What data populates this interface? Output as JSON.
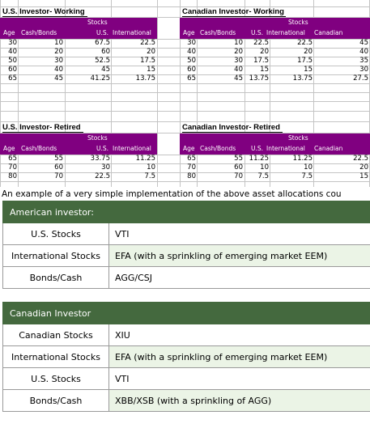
{
  "spreadsheet": {
    "working_us": {
      "title": "U.S. Investor- Working",
      "stocks_label": "Stocks",
      "headers": [
        "Age",
        "Cash/Bonds",
        "U.S.",
        "International"
      ],
      "rows": [
        [
          "30",
          "10",
          "67.5",
          "22.5"
        ],
        [
          "40",
          "20",
          "60",
          "20"
        ],
        [
          "50",
          "30",
          "52.5",
          "17.5"
        ],
        [
          "60",
          "40",
          "45",
          "15"
        ],
        [
          "65",
          "45",
          "41.25",
          "13.75"
        ]
      ]
    },
    "working_ca": {
      "title": "Canadian Investor- Working",
      "stocks_label": "Stocks",
      "headers": [
        "Age",
        "Cash/Bonds",
        "U.S.",
        "International",
        "Canadian"
      ],
      "rows": [
        [
          "30",
          "10",
          "22.5",
          "22.5",
          "45"
        ],
        [
          "40",
          "20",
          "20",
          "20",
          "40"
        ],
        [
          "50",
          "30",
          "17.5",
          "17.5",
          "35"
        ],
        [
          "60",
          "40",
          "15",
          "15",
          "30"
        ],
        [
          "65",
          "45",
          "13.75",
          "13.75",
          "27.5"
        ]
      ]
    },
    "retired_us": {
      "title": "U.S. Investor- Retired",
      "stocks_label": "Stocks",
      "headers": [
        "Age",
        "Cash/Bonds",
        "U.S.",
        "International"
      ],
      "rows": [
        [
          "65",
          "55",
          "33.75",
          "11.25"
        ],
        [
          "70",
          "60",
          "30",
          "10"
        ],
        [
          "80",
          "70",
          "22.5",
          "7.5"
        ]
      ]
    },
    "retired_ca": {
      "title": "Canadian Investor- Retired",
      "stocks_label": "Stocks",
      "headers": [
        "Age",
        "Cash/Bonds",
        "U.S.",
        "International",
        "Canadian"
      ],
      "rows": [
        [
          "65",
          "55",
          "11.25",
          "11.25",
          "22.5"
        ],
        [
          "70",
          "60",
          "10",
          "10",
          "20"
        ],
        [
          "80",
          "70",
          "7.5",
          "7.5",
          "15"
        ]
      ]
    }
  },
  "caption": "An example of a very simple implementation of the above asset allocations cou",
  "american": {
    "header": "American investor:",
    "rows": [
      {
        "label": "U.S. Stocks",
        "value": "VTI"
      },
      {
        "label": "International Stocks",
        "value": "EFA (with a sprinkling of emerging market EEM)"
      },
      {
        "label": "Bonds/Cash",
        "value": "AGG/CSJ"
      }
    ]
  },
  "canadian": {
    "header": "Canadian Investor",
    "rows": [
      {
        "label": "Canadian Stocks",
        "value": "XIU"
      },
      {
        "label": "International Stocks",
        "value": "EFA (with a sprinkling of emerging market EEM)"
      },
      {
        "label": "U.S. Stocks",
        "value": "VTI"
      },
      {
        "label": "Bonds/Cash",
        "value": "XBB/XSB (with a sprinkling of AGG)"
      }
    ]
  }
}
